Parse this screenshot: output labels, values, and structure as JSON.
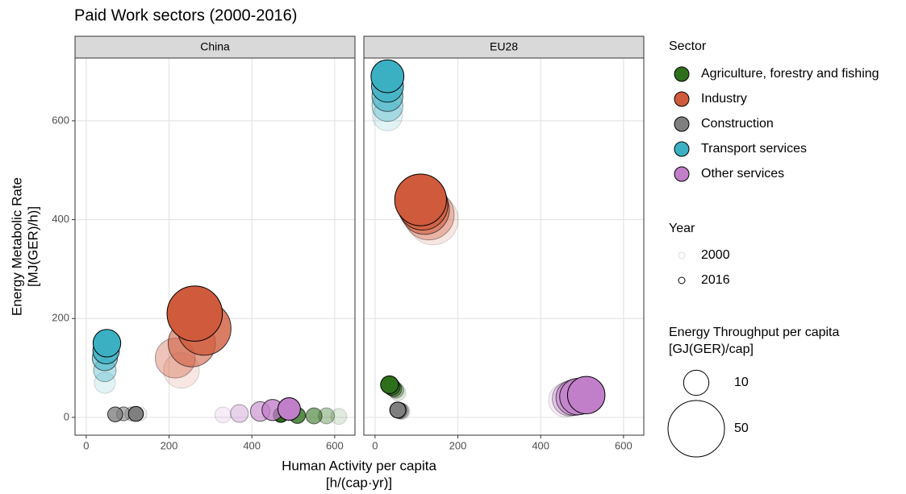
{
  "chart_data": {
    "type": "scatter",
    "title": "Paid Work sectors (2000-2016)",
    "x_label": [
      "Human Activity per capita",
      "[h/(cap·yr)]"
    ],
    "y_label": [
      "Energy Metabolic Rate",
      "[MJ(GER)/h)]"
    ],
    "xlim": [
      -27,
      649
    ],
    "xticks": [
      0,
      200,
      400,
      600
    ],
    "ylim": [
      -36,
      727
    ],
    "yticks": [
      0,
      200,
      400,
      600
    ],
    "grid": true,
    "legend_title": "Sector",
    "year_title": "Year",
    "year_values": [
      2000,
      2016
    ],
    "size_title": [
      "Energy Throughput per capita",
      "[GJ(GER)/cap]"
    ],
    "size_values": [
      10,
      50
    ],
    "sectors": [
      {
        "name": "Agriculture, forestry and fishing",
        "color": "#2e6f1c"
      },
      {
        "name": "Industry",
        "color": "#cf5a3c"
      },
      {
        "name": "Construction",
        "color": "#7f7f7f"
      },
      {
        "name": "Transport services",
        "color": "#3bb0c3"
      },
      {
        "name": "Other services",
        "color": "#c07fc8"
      }
    ],
    "panels": [
      {
        "name": "China",
        "series": [
          {
            "name": "Agriculture, forestry and fishing",
            "year": [
              2000,
              2004,
              2008,
              2012,
              2016
            ],
            "x": [
              610,
              580,
              550,
              510,
              470
            ],
            "y": [
              2,
              3,
              3,
              4,
              5
            ],
            "size": [
              4,
              4,
              4,
              4,
              3.5
            ]
          },
          {
            "name": "Industry",
            "year": [
              2000,
              2004,
              2008,
              2012,
              2016
            ],
            "x": [
              230,
              215,
              255,
              285,
              262
            ],
            "y": [
              95,
              120,
              150,
              180,
              210
            ],
            "size": [
              20,
              25,
              35,
              45,
              48
            ]
          },
          {
            "name": "Construction",
            "year": [
              2000,
              2004,
              2008,
              2012,
              2016
            ],
            "x": [
              130,
              110,
              90,
              70,
              120
            ],
            "y": [
              7,
              7,
              7,
              6,
              7
            ],
            "size": [
              3,
              3,
              3,
              3.5,
              3.5
            ]
          },
          {
            "name": "Transport services",
            "year": [
              2000,
              2004,
              2008,
              2012,
              2016
            ],
            "x": [
              45,
              45,
              45,
              48,
              50
            ],
            "y": [
              70,
              95,
              120,
              135,
              150
            ],
            "size": [
              7,
              8,
              10,
              11,
              12
            ]
          },
          {
            "name": "Other services",
            "year": [
              2000,
              2004,
              2008,
              2012,
              2016
            ],
            "x": [
              330,
              370,
              420,
              450,
              490
            ],
            "y": [
              5,
              8,
              12,
              15,
              17
            ],
            "size": [
              4,
              5,
              6,
              7,
              8
            ]
          }
        ]
      },
      {
        "name": "EU28",
        "series": [
          {
            "name": "Agriculture, forestry and fishing",
            "year": [
              2000,
              2004,
              2008,
              2012,
              2016
            ],
            "x": [
              55,
              50,
              45,
              40,
              35
            ],
            "y": [
              50,
              55,
              58,
              62,
              66
            ],
            "size": [
              4,
              4,
              4,
              4.5,
              5
            ]
          },
          {
            "name": "Industry",
            "year": [
              2000,
              2004,
              2008,
              2012,
              2016
            ],
            "x": [
              140,
              130,
              120,
              115,
              110
            ],
            "y": [
              400,
              410,
              420,
              430,
              440
            ],
            "size": [
              40,
              40,
              38,
              40,
              42
            ]
          },
          {
            "name": "Construction",
            "year": [
              2000,
              2004,
              2008,
              2012,
              2016
            ],
            "x": [
              65,
              62,
              58,
              55,
              55
            ],
            "y": [
              12,
              13,
              14,
              15,
              15
            ],
            "size": [
              4,
              4,
              4,
              4,
              4
            ]
          },
          {
            "name": "Transport services",
            "year": [
              2000,
              2004,
              2008,
              2012,
              2016
            ],
            "x": [
              30,
              30,
              30,
              30,
              30
            ],
            "y": [
              610,
              630,
              650,
              670,
              690
            ],
            "size": [
              14,
              15,
              15,
              16,
              17
            ]
          },
          {
            "name": "Other services",
            "year": [
              2000,
              2004,
              2008,
              2012,
              2016
            ],
            "x": [
              460,
              470,
              480,
              490,
              510
            ],
            "y": [
              35,
              38,
              40,
              42,
              45
            ],
            "size": [
              18,
              19,
              20,
              21,
              22
            ]
          }
        ]
      }
    ]
  }
}
